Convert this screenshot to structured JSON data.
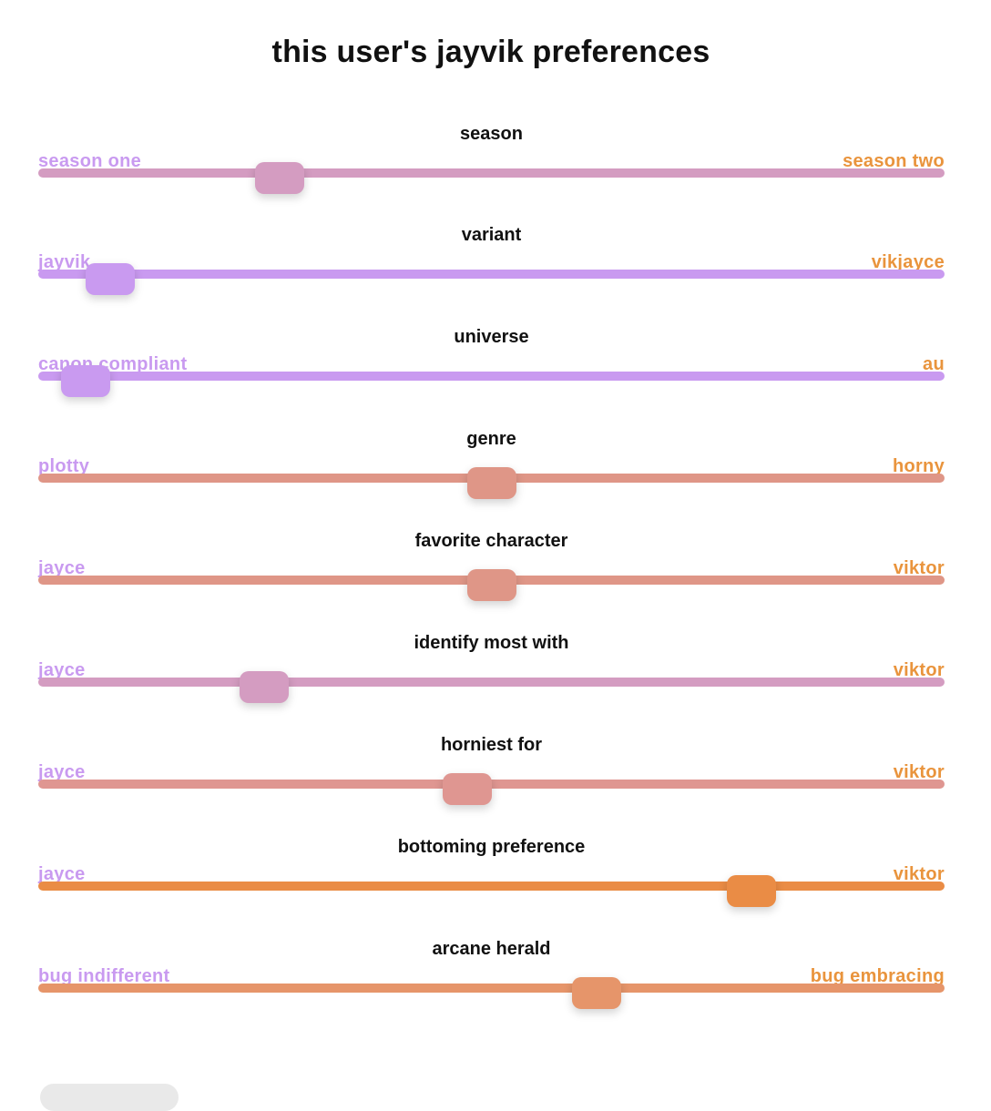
{
  "title": "this user's jayvik preferences",
  "colors": {
    "left_label": "#c99af0",
    "right_label": "#e9943d"
  },
  "sliders": [
    {
      "name": "season",
      "left": "season one",
      "right": "season two",
      "value": 0.253,
      "color": "#d49cc1"
    },
    {
      "name": "variant",
      "left": "jayvik",
      "right": "vikjayce",
      "value": 0.055,
      "color": "#c99af0"
    },
    {
      "name": "universe",
      "left": "canon compliant",
      "right": "au",
      "value": 0.027,
      "color": "#c99af0"
    },
    {
      "name": "genre",
      "left": "plotty",
      "right": "horny",
      "value": 0.5,
      "color": "#df9687"
    },
    {
      "name": "favorite character",
      "left": "jayce",
      "right": "viktor",
      "value": 0.5,
      "color": "#df9687"
    },
    {
      "name": "identify most with",
      "left": "jayce",
      "right": "viktor",
      "value": 0.235,
      "color": "#d49cc1"
    },
    {
      "name": "horniest for",
      "left": "jayce",
      "right": "viktor",
      "value": 0.472,
      "color": "#df9691"
    },
    {
      "name": "bottoming preference",
      "left": "jayce",
      "right": "viktor",
      "value": 0.803,
      "color": "#ea8c45"
    },
    {
      "name": "arcane herald",
      "left": "bug indifferent",
      "right": "bug embracing",
      "value": 0.623,
      "color": "#e6956a"
    }
  ]
}
